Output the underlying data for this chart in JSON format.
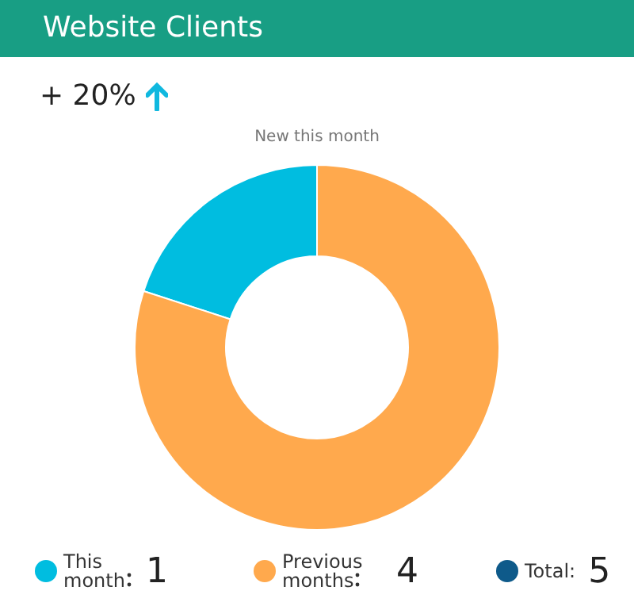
{
  "chart_data": {
    "type": "donut",
    "title": "Website Clients",
    "subtitle": "New this month",
    "categories": [
      "This month",
      "Previous months"
    ],
    "values": [
      1,
      4
    ],
    "colors": [
      "#00bde0",
      "#ffa94d"
    ],
    "annotations": [
      "+ 20%",
      "Total:",
      "5"
    ],
    "legend": "bottom",
    "data_labels": true
  }
}
